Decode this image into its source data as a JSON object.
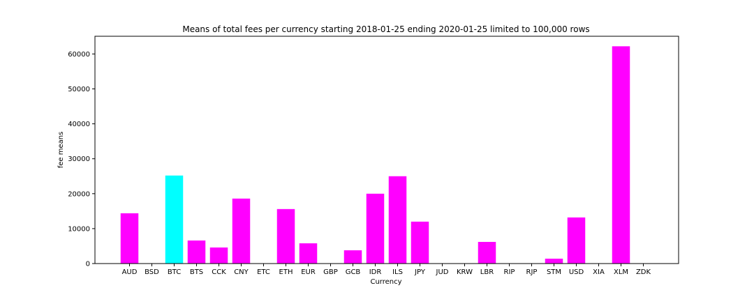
{
  "chart_data": {
    "type": "bar",
    "title": "Means of total fees per currency starting 2018-01-25 ending 2020-01-25 limited to 100,000 rows",
    "xlabel": "Currency",
    "ylabel": "fee means",
    "categories": [
      "AUD",
      "BSD",
      "BTC",
      "BTS",
      "CCK",
      "CNY",
      "ETC",
      "ETH",
      "EUR",
      "GBP",
      "GCB",
      "IDR",
      "ILS",
      "JPY",
      "JUD",
      "KRW",
      "LBR",
      "RIP",
      "RJP",
      "STM",
      "USD",
      "XIA",
      "XLM",
      "ZDK"
    ],
    "values": [
      14400,
      0,
      25200,
      6600,
      4600,
      18600,
      0,
      15600,
      5800,
      0,
      3800,
      20000,
      25000,
      12000,
      0,
      0,
      6200,
      0,
      0,
      1400,
      13200,
      0,
      62200,
      0
    ],
    "highlight_category": "BTC",
    "yticks": [
      0,
      10000,
      20000,
      30000,
      40000,
      50000,
      60000
    ],
    "ylim": [
      0,
      65000
    ],
    "grid": false,
    "colors": {
      "default": "#ff00ff",
      "highlight": "#00ffff",
      "axis": "#000000"
    }
  }
}
